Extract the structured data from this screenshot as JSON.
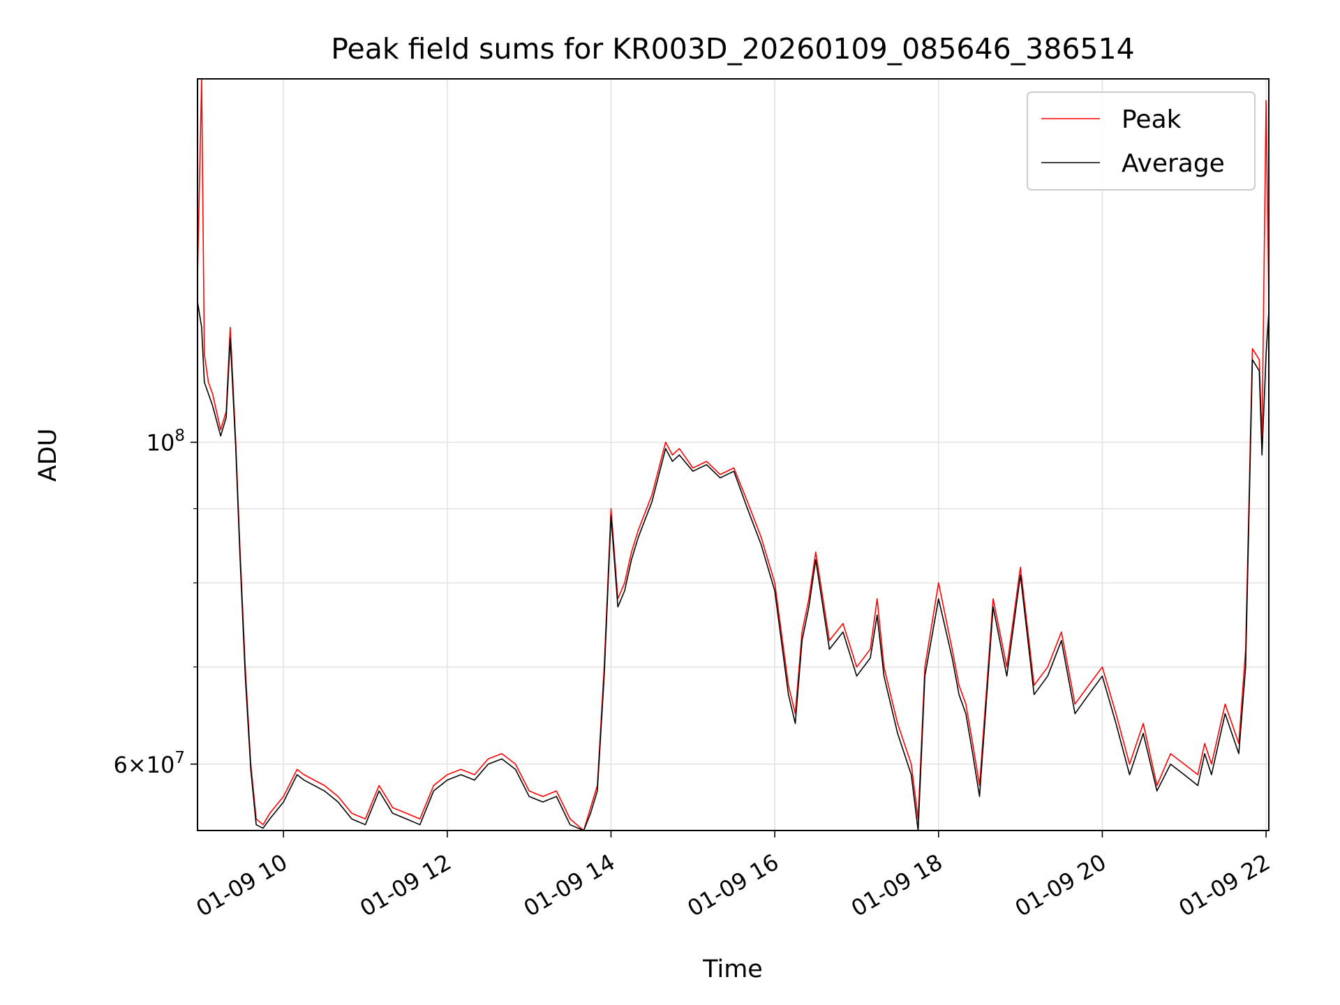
{
  "chart_data": {
    "type": "line",
    "title": "Peak field sums for KR003D_20260109_085646_386514",
    "xlabel": "Time",
    "ylabel": "ADU",
    "y_scale": "log",
    "ylim": [
      54000000,
      178000000
    ],
    "xlim": [
      "01-09 08:57",
      "01-09 22:02"
    ],
    "grid": true,
    "legend_position": "upper right",
    "x_ticks": [
      "01-09 10",
      "01-09 12",
      "01-09 14",
      "01-09 16",
      "01-09 18",
      "01-09 20",
      "01-09 22"
    ],
    "y_ticks": [
      {
        "value": 60000000,
        "base": "6",
        "times": "×10",
        "exp": "7"
      },
      {
        "value": 100000000,
        "base": "",
        "times": "10",
        "exp": "8"
      }
    ],
    "colors": {
      "peak": "#ff0000",
      "average": "#000000",
      "grid": "#e3e3e3"
    },
    "series": [
      {
        "name": "Peak",
        "color": "#ff0000",
        "x": [
          "01-09 08:57",
          "01-09 09:00",
          "01-09 09:02",
          "01-09 09:05",
          "01-09 09:08",
          "01-09 09:14",
          "01-09 09:18",
          "01-09 09:21",
          "01-09 09:25",
          "01-09 09:28",
          "01-09 09:32",
          "01-09 09:36",
          "01-09 09:40",
          "01-09 09:45",
          "01-09 09:50",
          "01-09 10:00",
          "01-09 10:10",
          "01-09 10:15",
          "01-09 10:30",
          "01-09 10:40",
          "01-09 10:50",
          "01-09 11:00",
          "01-09 11:10",
          "01-09 11:15",
          "01-09 11:20",
          "01-09 11:30",
          "01-09 11:40",
          "01-09 11:50",
          "01-09 12:00",
          "01-09 12:10",
          "01-09 12:20",
          "01-09 12:30",
          "01-09 12:40",
          "01-09 12:50",
          "01-09 13:00",
          "01-09 13:10",
          "01-09 13:20",
          "01-09 13:30",
          "01-09 13:40",
          "01-09 13:45",
          "01-09 13:50",
          "01-09 13:55",
          "01-09 14:00",
          "01-09 14:05",
          "01-09 14:10",
          "01-09 14:15",
          "01-09 14:20",
          "01-09 14:30",
          "01-09 14:40",
          "01-09 14:45",
          "01-09 14:50",
          "01-09 15:00",
          "01-09 15:10",
          "01-09 15:20",
          "01-09 15:30",
          "01-09 15:40",
          "01-09 15:50",
          "01-09 16:00",
          "01-09 16:10",
          "01-09 16:15",
          "01-09 16:20",
          "01-09 16:25",
          "01-09 16:30",
          "01-09 16:40",
          "01-09 16:50",
          "01-09 17:00",
          "01-09 17:10",
          "01-09 17:15",
          "01-09 17:20",
          "01-09 17:30",
          "01-09 17:40",
          "01-09 17:45",
          "01-09 17:50",
          "01-09 18:00",
          "01-09 18:10",
          "01-09 18:15",
          "01-09 18:20",
          "01-09 18:25",
          "01-09 18:30",
          "01-09 18:40",
          "01-09 18:50",
          "01-09 19:00",
          "01-09 19:10",
          "01-09 19:20",
          "01-09 19:30",
          "01-09 19:40",
          "01-09 19:50",
          "01-09 20:00",
          "01-09 20:10",
          "01-09 20:20",
          "01-09 20:30",
          "01-09 20:40",
          "01-09 20:50",
          "01-09 21:00",
          "01-09 21:10",
          "01-09 21:15",
          "01-09 21:20",
          "01-09 21:30",
          "01-09 21:40",
          "01-09 21:45",
          "01-09 21:50",
          "01-09 21:55",
          "01-09 21:57",
          "01-09 22:00",
          "01-09 22:02"
        ],
        "values": [
          130000000,
          178000000,
          115000000,
          110000000,
          108000000,
          102000000,
          105000000,
          120000000,
          100000000,
          85000000,
          70000000,
          60000000,
          55000000,
          54500000,
          55500000,
          57000000,
          59500000,
          59000000,
          58000000,
          57000000,
          55500000,
          55000000,
          58000000,
          57000000,
          56000000,
          55500000,
          55000000,
          58000000,
          59000000,
          59500000,
          59000000,
          60500000,
          61000000,
          60000000,
          57500000,
          57000000,
          57500000,
          55000000,
          54000000,
          56000000,
          58000000,
          70000000,
          90000000,
          78000000,
          80000000,
          84000000,
          87000000,
          92000000,
          100000000,
          98000000,
          99000000,
          96000000,
          97000000,
          95000000,
          96000000,
          91000000,
          86000000,
          80000000,
          68000000,
          65000000,
          74000000,
          78000000,
          84000000,
          73000000,
          75000000,
          70000000,
          72000000,
          78000000,
          70000000,
          64000000,
          60000000,
          55000000,
          70000000,
          80000000,
          72000000,
          68000000,
          66000000,
          62000000,
          58000000,
          78000000,
          70000000,
          82000000,
          68000000,
          70000000,
          74000000,
          66000000,
          68000000,
          70000000,
          65000000,
          60000000,
          64000000,
          58000000,
          61000000,
          60000000,
          59000000,
          62000000,
          60000000,
          66000000,
          62000000,
          72000000,
          116000000,
          114000000,
          100000000,
          172000000,
          125000000
        ]
      },
      {
        "name": "Average",
        "color": "#000000",
        "x": [
          "01-09 08:57",
          "01-09 09:00",
          "01-09 09:02",
          "01-09 09:05",
          "01-09 09:08",
          "01-09 09:14",
          "01-09 09:18",
          "01-09 09:21",
          "01-09 09:25",
          "01-09 09:28",
          "01-09 09:32",
          "01-09 09:36",
          "01-09 09:40",
          "01-09 09:45",
          "01-09 09:50",
          "01-09 10:00",
          "01-09 10:10",
          "01-09 10:15",
          "01-09 10:30",
          "01-09 10:40",
          "01-09 10:50",
          "01-09 11:00",
          "01-09 11:10",
          "01-09 11:15",
          "01-09 11:20",
          "01-09 11:30",
          "01-09 11:40",
          "01-09 11:50",
          "01-09 12:00",
          "01-09 12:10",
          "01-09 12:20",
          "01-09 12:30",
          "01-09 12:40",
          "01-09 12:50",
          "01-09 13:00",
          "01-09 13:10",
          "01-09 13:20",
          "01-09 13:30",
          "01-09 13:40",
          "01-09 13:45",
          "01-09 13:50",
          "01-09 13:55",
          "01-09 14:00",
          "01-09 14:05",
          "01-09 14:10",
          "01-09 14:15",
          "01-09 14:20",
          "01-09 14:30",
          "01-09 14:40",
          "01-09 14:45",
          "01-09 14:50",
          "01-09 15:00",
          "01-09 15:10",
          "01-09 15:20",
          "01-09 15:30",
          "01-09 15:40",
          "01-09 15:50",
          "01-09 16:00",
          "01-09 16:10",
          "01-09 16:15",
          "01-09 16:20",
          "01-09 16:25",
          "01-09 16:30",
          "01-09 16:40",
          "01-09 16:50",
          "01-09 17:00",
          "01-09 17:10",
          "01-09 17:15",
          "01-09 17:20",
          "01-09 17:30",
          "01-09 17:40",
          "01-09 17:45",
          "01-09 17:50",
          "01-09 18:00",
          "01-09 18:10",
          "01-09 18:15",
          "01-09 18:20",
          "01-09 18:25",
          "01-09 18:30",
          "01-09 18:40",
          "01-09 18:50",
          "01-09 19:00",
          "01-09 19:10",
          "01-09 19:20",
          "01-09 19:30",
          "01-09 19:40",
          "01-09 19:50",
          "01-09 20:00",
          "01-09 20:10",
          "01-09 20:20",
          "01-09 20:30",
          "01-09 20:40",
          "01-09 20:50",
          "01-09 21:00",
          "01-09 21:10",
          "01-09 21:15",
          "01-09 21:20",
          "01-09 21:30",
          "01-09 21:40",
          "01-09 21:45",
          "01-09 21:50",
          "01-09 21:55",
          "01-09 21:57",
          "01-09 22:00",
          "01-09 22:02"
        ],
        "values": [
          125000000,
          120000000,
          110000000,
          108000000,
          106000000,
          101000000,
          104000000,
          118000000,
          99000000,
          84000000,
          69000000,
          59500000,
          54500000,
          54200000,
          55000000,
          56500000,
          59000000,
          58500000,
          57500000,
          56500000,
          55000000,
          54500000,
          57500000,
          56500000,
          55500000,
          55000000,
          54500000,
          57500000,
          58500000,
          59000000,
          58500000,
          60000000,
          60500000,
          59500000,
          57000000,
          56500000,
          57000000,
          54500000,
          53800000,
          55500000,
          57500000,
          69000000,
          89000000,
          77000000,
          79000000,
          83000000,
          86000000,
          91000000,
          99000000,
          97000000,
          98000000,
          95500000,
          96500000,
          94500000,
          95500000,
          90000000,
          85000000,
          79000000,
          67000000,
          64000000,
          73000000,
          77000000,
          83000000,
          72000000,
          74000000,
          69000000,
          71000000,
          76000000,
          69000000,
          63000000,
          59000000,
          53000000,
          69000000,
          78000000,
          71000000,
          67000000,
          65000000,
          61000000,
          57000000,
          77000000,
          69000000,
          81000000,
          67000000,
          69000000,
          73000000,
          65000000,
          67000000,
          69000000,
          64000000,
          59000000,
          63000000,
          57500000,
          60000000,
          59000000,
          58000000,
          61000000,
          59000000,
          65000000,
          61000000,
          70000000,
          114000000,
          112000000,
          98000000,
          115000000,
          123000000
        ]
      }
    ]
  }
}
